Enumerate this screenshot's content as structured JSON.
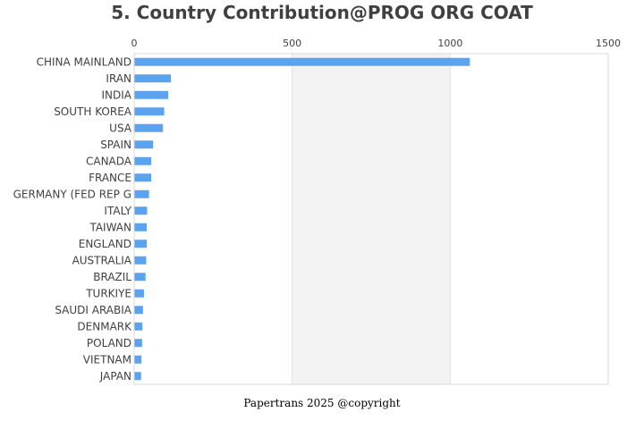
{
  "chart_data": {
    "type": "bar",
    "orientation": "horizontal",
    "title": "5. Country Contribution@PROG ORG COAT",
    "xlabel": "",
    "ylabel": "",
    "xlim": [
      0,
      1500
    ],
    "xticks": [
      0,
      500,
      1000,
      1500
    ],
    "x_axis_position": "top",
    "grid": false,
    "alternating_bands": true,
    "bar_color": "#5ba3ef",
    "band_color": "#f3f3f3",
    "categories": [
      "CHINA MAINLAND",
      "IRAN",
      "INDIA",
      "SOUTH KOREA",
      "USA",
      "SPAIN",
      "CANADA",
      "FRANCE",
      "GERMANY (FED REP G",
      "ITALY",
      "TAIWAN",
      "ENGLAND",
      "AUSTRALIA",
      "BRAZIL",
      "TURKIYE",
      "SAUDI ARABIA",
      "DENMARK",
      "POLAND",
      "VIETNAM",
      "JAPAN"
    ],
    "values": [
      1062,
      116,
      108,
      95,
      91,
      60,
      54,
      54,
      47,
      41,
      40,
      40,
      38,
      36,
      31,
      28,
      26,
      25,
      23,
      22
    ]
  },
  "footer": "Papertrans 2025 @copyright"
}
